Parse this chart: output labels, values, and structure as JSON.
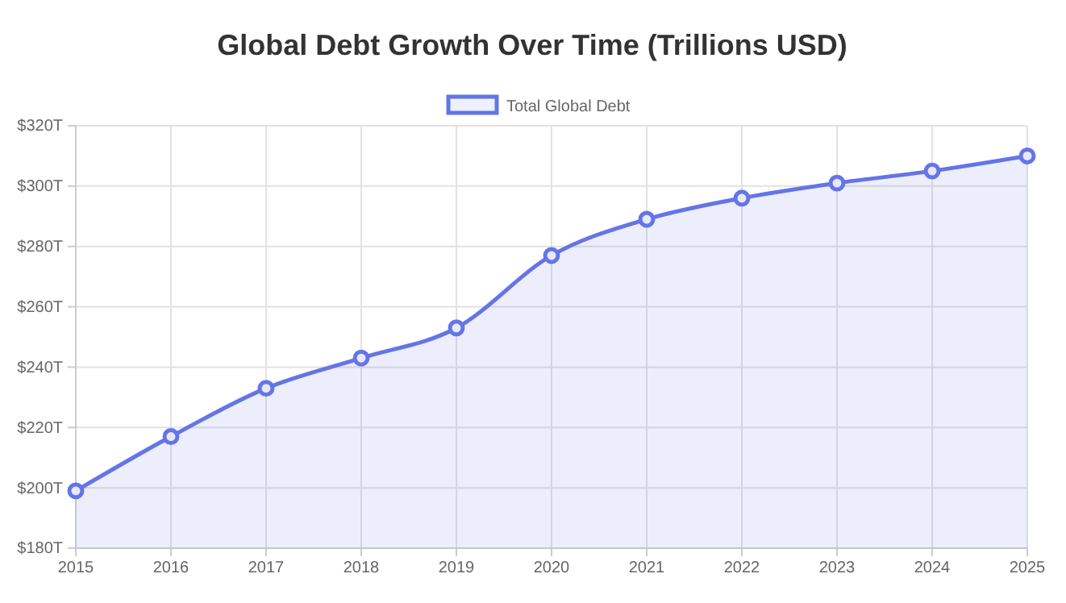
{
  "chart_data": {
    "type": "area",
    "title": "Global Debt Growth Over Time (Trillions USD)",
    "categories": [
      "2015",
      "2016",
      "2017",
      "2018",
      "2019",
      "2020",
      "2021",
      "2022",
      "2023",
      "2024",
      "2025"
    ],
    "series": [
      {
        "name": "Total Global Debt",
        "color": "#6574e6",
        "values": [
          199,
          217,
          233,
          243,
          253,
          277,
          289,
          296,
          301,
          305,
          310
        ]
      }
    ],
    "ylim": [
      180,
      320
    ],
    "yticks": [
      {
        "value": 180,
        "label": "$180T"
      },
      {
        "value": 200,
        "label": "$200T"
      },
      {
        "value": 220,
        "label": "$220T"
      },
      {
        "value": 240,
        "label": "$240T"
      },
      {
        "value": 260,
        "label": "$260T"
      },
      {
        "value": 280,
        "label": "$280T"
      },
      {
        "value": 300,
        "label": "$300T"
      },
      {
        "value": 320,
        "label": "$320T"
      }
    ],
    "grid": true,
    "legend": "top",
    "marker": "circle",
    "line_style": "solid"
  }
}
